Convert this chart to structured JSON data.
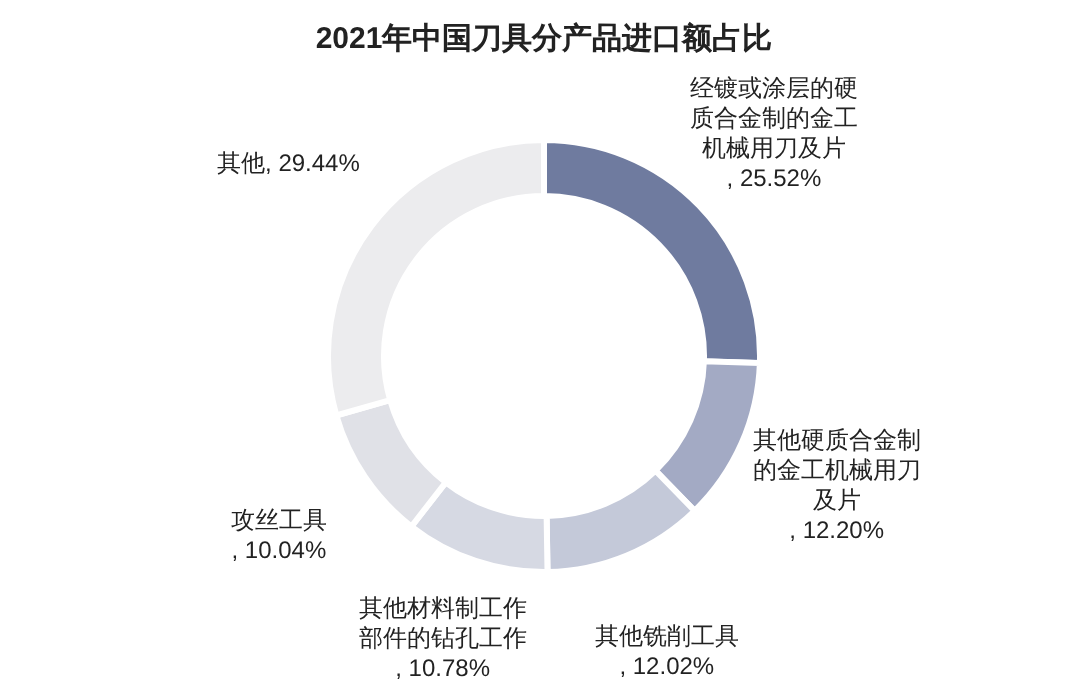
{
  "chart_data": {
    "type": "donut",
    "title": "2021年中国刀具分产品进口额占比",
    "categories": [
      "经镀或涂层的硬质合金制的金工机械用刀及片",
      "其他硬质合金制的金工机械用刀及片",
      "其他铣削工具",
      "其他材料制工作部件的钻孔工作",
      "攻丝工具",
      "其他"
    ],
    "values": [
      25.52,
      12.2,
      12.02,
      10.78,
      10.04,
      29.44
    ],
    "value_labels": [
      ", 25.52%",
      ", 12.20%",
      ", 12.02%",
      ", 10.78%",
      ", 10.04%",
      ", 29.44%"
    ],
    "colors": [
      "#6f7b9f",
      "#a3aac4",
      "#c4c9d9",
      "#d6d9e3",
      "#e0e1e7",
      "#ececee"
    ]
  }
}
